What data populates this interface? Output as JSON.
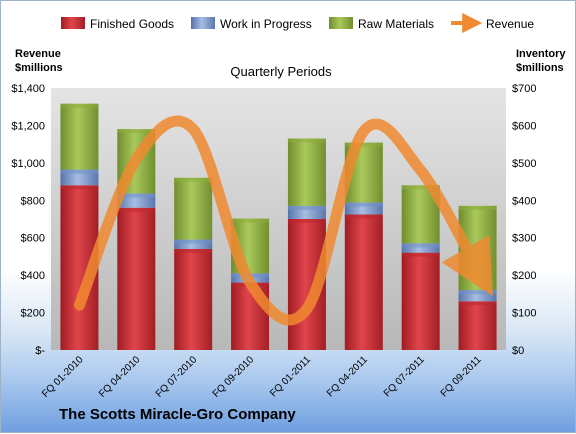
{
  "chart_data": {
    "type": "bar",
    "subtype": "stacked bar with line overlay",
    "title": "Quarterly Periods",
    "categories": [
      "FQ 01-2010",
      "FQ 04-2010",
      "FQ 07-2010",
      "FQ 09-2010",
      "FQ 01-2011",
      "FQ 04-2011",
      "FQ 07-2011",
      "FQ 09-2011"
    ],
    "series": [
      {
        "name": "Finished Goods",
        "axis": "right",
        "color": "#c0262d",
        "values": [
          440,
          380,
          270,
          180,
          350,
          362,
          260,
          130
        ]
      },
      {
        "name": "Work in Progress",
        "axis": "right",
        "color": "#6f90c8",
        "values": [
          42,
          38,
          25,
          25,
          35,
          32,
          25,
          30
        ]
      },
      {
        "name": "Raw Materials",
        "axis": "right",
        "color": "#8cad3e",
        "values": [
          176,
          172,
          165,
          146,
          180,
          160,
          155,
          225
        ]
      },
      {
        "name": "Revenue",
        "type": "line",
        "axis": "left",
        "color": "#f08a30",
        "values": [
          240,
          1020,
          1180,
          360,
          220,
          1170,
          960,
          430
        ]
      }
    ],
    "left_axis": {
      "label_line1": "Revenue",
      "label_line2": "$millions",
      "ylim": [
        0,
        1400
      ],
      "ticks": [
        "$-",
        "$200",
        "$400",
        "$600",
        "$800",
        "$1,000",
        "$1,200",
        "$1,400"
      ]
    },
    "right_axis": {
      "label_line1": "Inventory",
      "label_line2": "$millions",
      "ylim": [
        0,
        700
      ],
      "ticks": [
        "$0",
        "$100",
        "$200",
        "$300",
        "$400",
        "$500",
        "$600",
        "$700"
      ]
    },
    "legend_position": "top",
    "grid": false
  },
  "footer": {
    "company": "The Scotts Miracle-Gro Company"
  }
}
